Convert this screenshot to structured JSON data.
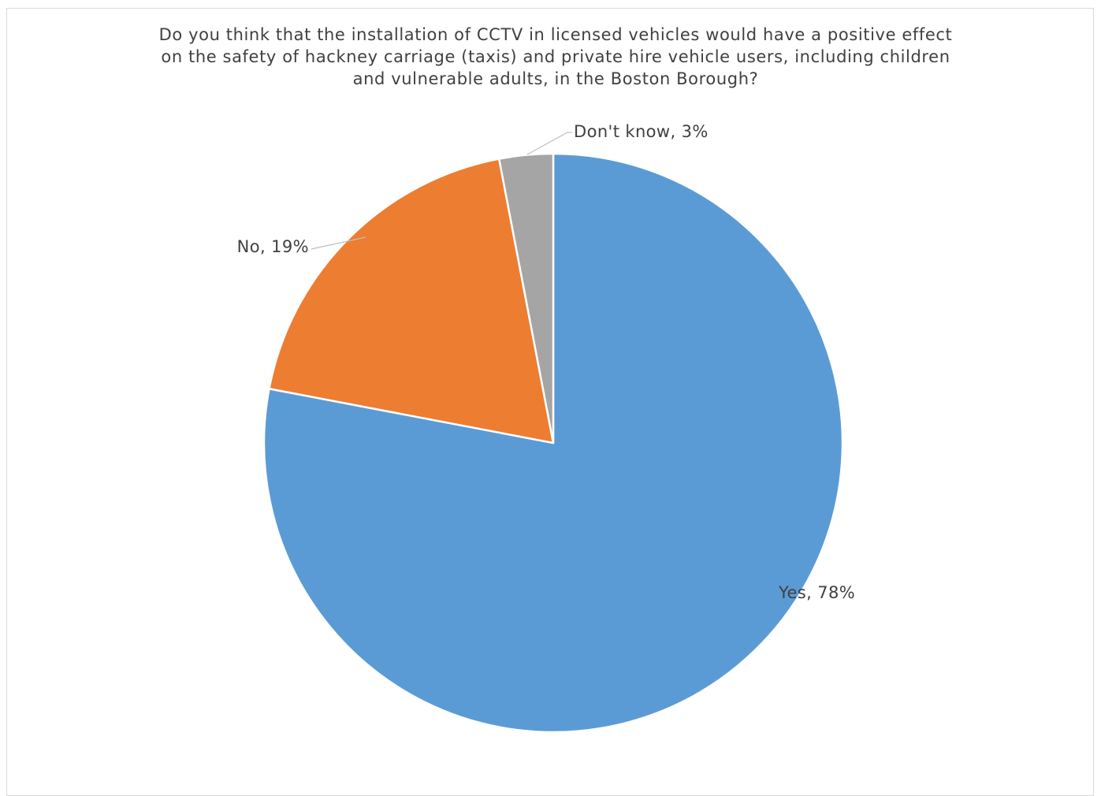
{
  "chart_data": {
    "type": "pie",
    "title_lines": [
      "Do you think that the installation of CCTV in licensed vehicles would have a positive effect",
      "on the safety of hackney carriage (taxis) and private hire vehicle users, including children",
      "and vulnerable adults, in the Boston Borough?"
    ],
    "slices": [
      {
        "name": "Yes",
        "value": 78,
        "label": "Yes, 78%",
        "color": "#5b9bd5"
      },
      {
        "name": "No",
        "value": 19,
        "label": "No, 19%",
        "color": "#ed7d31"
      },
      {
        "name": "Don't know",
        "value": 3,
        "label": "Don't know, 3%",
        "color": "#a5a5a5"
      }
    ],
    "legend": "none"
  }
}
